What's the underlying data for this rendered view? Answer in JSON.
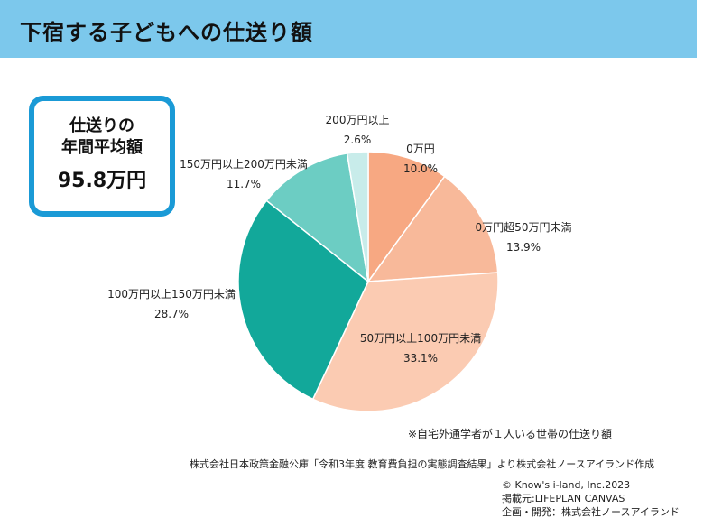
{
  "header": {
    "title": "下宿する子どもへの仕送り額"
  },
  "summary": {
    "label_line1": "仕送りの",
    "label_line2": "年間平均額",
    "value": "95.8万円"
  },
  "chart_data": {
    "type": "pie",
    "slices": [
      {
        "label": "0万円",
        "value": 10.0,
        "pct_text": "10.0%",
        "color": "#f7a882"
      },
      {
        "label": "0万円超50万円未満",
        "value": 13.9,
        "pct_text": "13.9%",
        "color": "#f8b99a"
      },
      {
        "label": "50万円以上100万円未満",
        "value": 33.1,
        "pct_text": "33.1%",
        "color": "#fbcbb2"
      },
      {
        "label": "100万円以上150万円未満",
        "value": 28.7,
        "pct_text": "28.7%",
        "color": "#12a89a"
      },
      {
        "label": "150万円以上200万円未満",
        "value": 11.7,
        "pct_text": "11.7%",
        "color": "#6ccdc3"
      },
      {
        "label": "200万円以上",
        "value": 2.6,
        "pct_text": "2.6%",
        "color": "#c8ecea"
      }
    ]
  },
  "footnote": "※自宅外通学者が１人いる世帯の仕送り額",
  "source": "株式会社日本政策金融公庫「令和3年度 教育費負担の実態調査結果」より株式会社ノースアイランド作成",
  "credits": {
    "line1": "© Know's i-land, Inc.2023",
    "line2": "掲載元:LIFEPLAN CANVAS",
    "line3": "企画・開発：株式会社ノースアイランド"
  }
}
